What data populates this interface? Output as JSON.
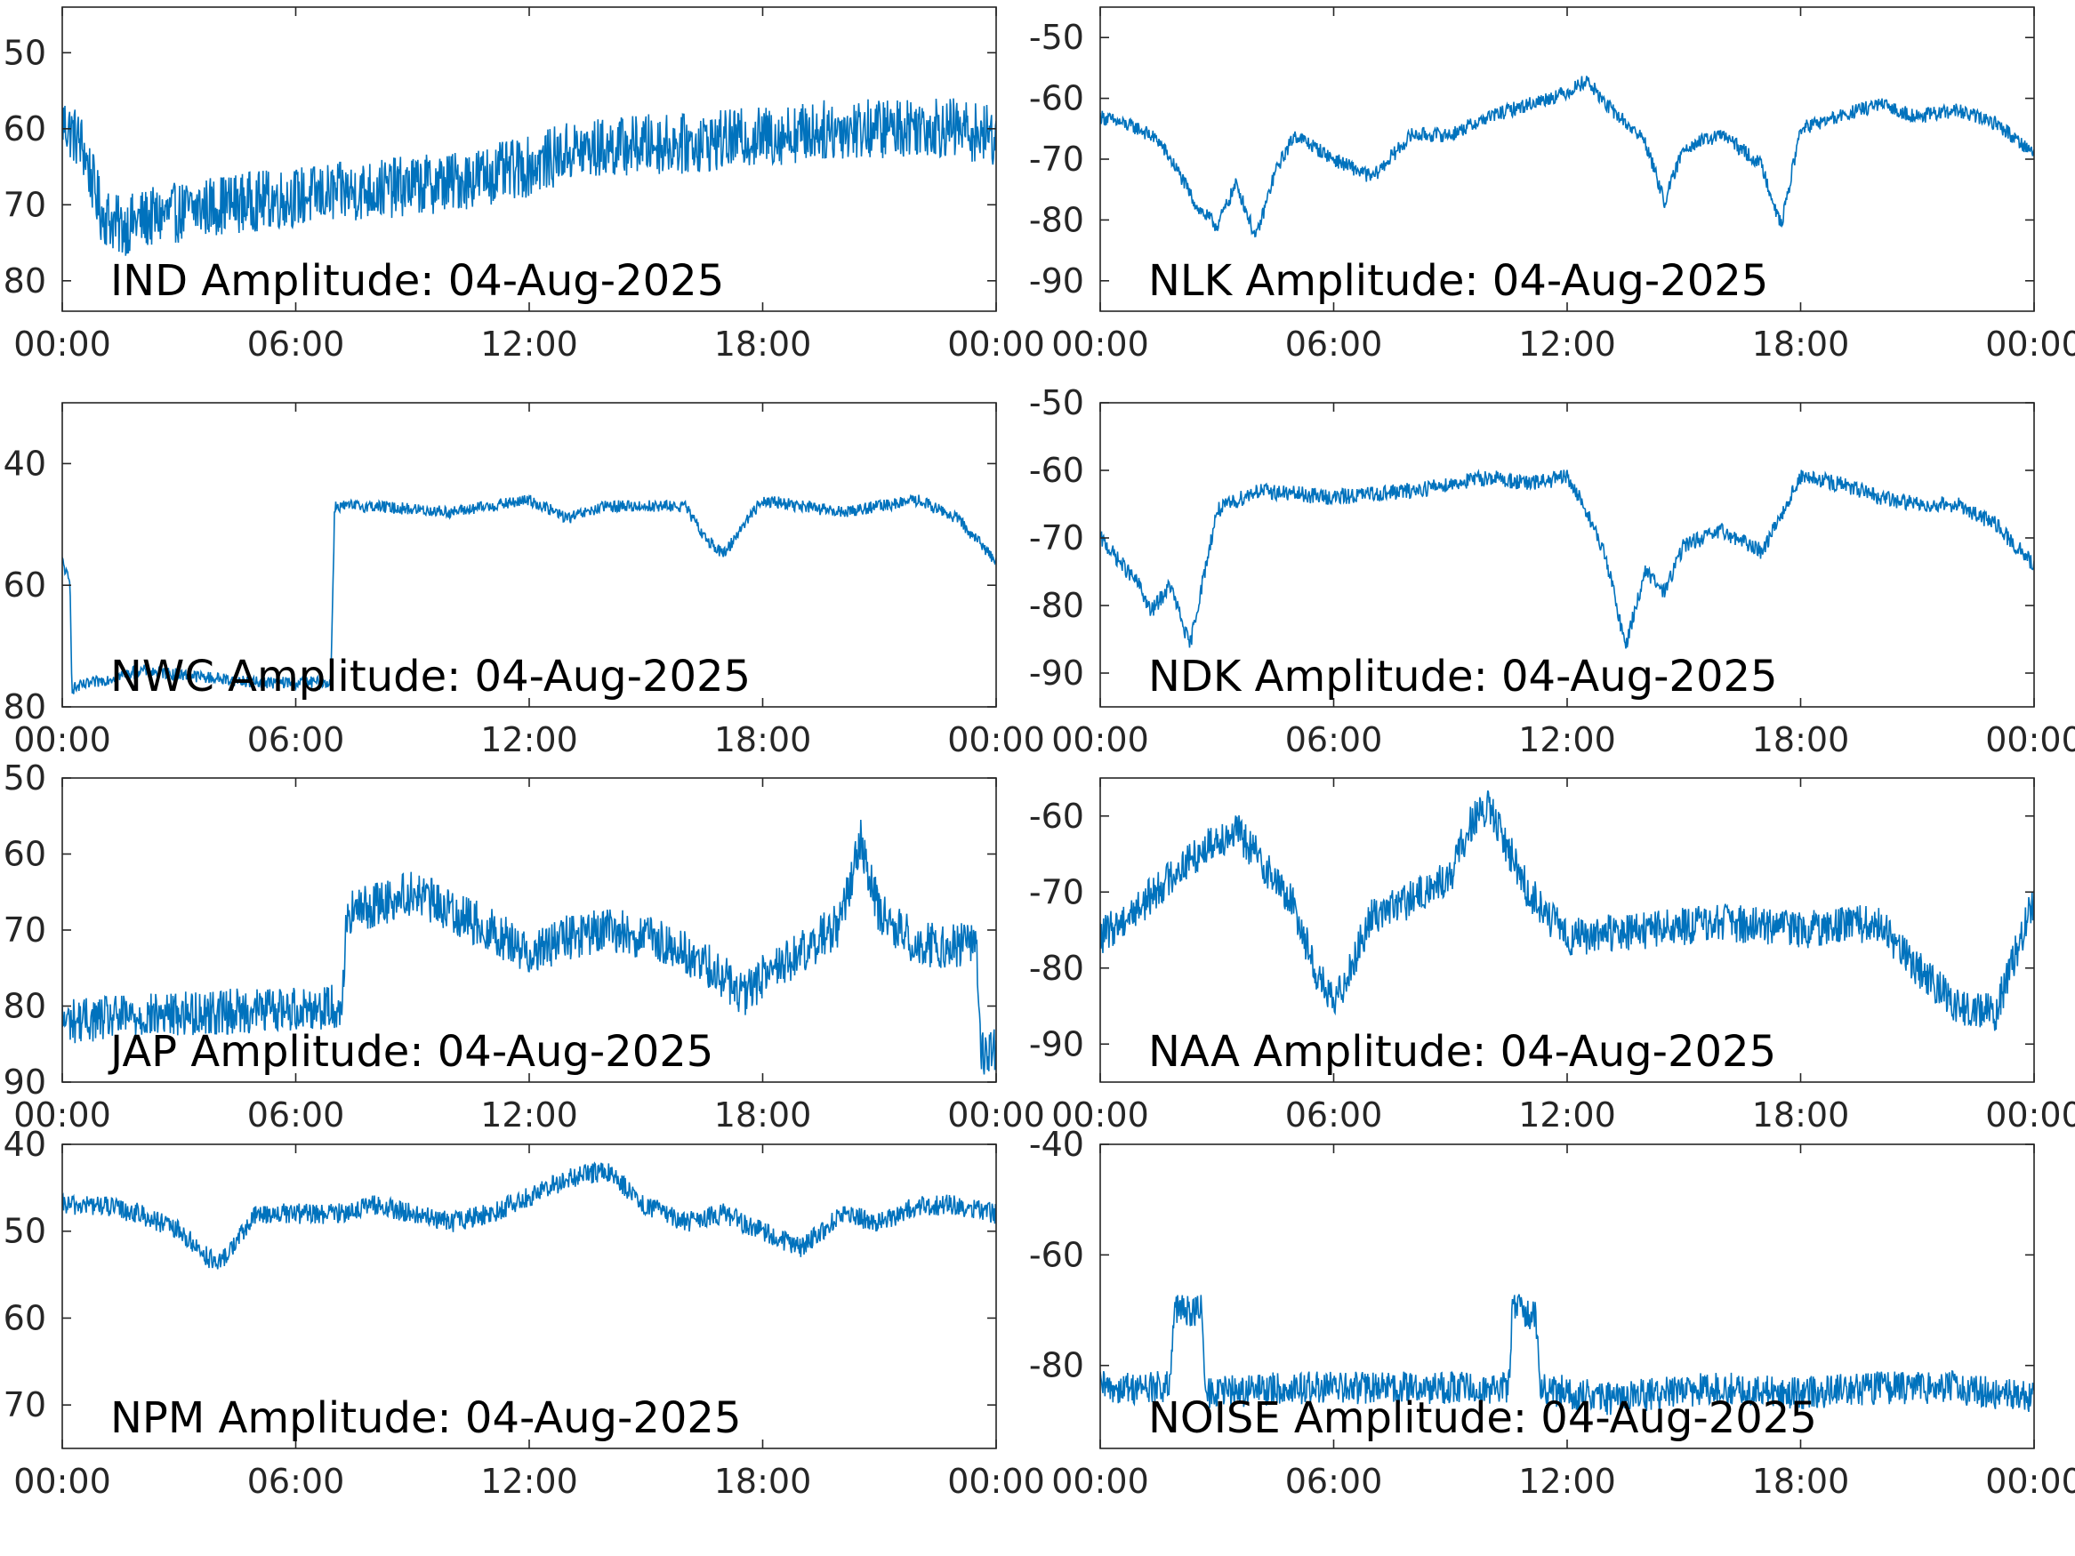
{
  "colors": {
    "line": "#0072BD",
    "axis": "#262626",
    "background": "#ffffff"
  },
  "x_tick_labels": [
    "00:00",
    "06:00",
    "12:00",
    "18:00",
    "00:00"
  ],
  "chart_data": [
    {
      "type": "line",
      "id": "IND",
      "title": "IND Amplitude: 04-Aug-2025",
      "x_range": [
        "00:00",
        "24:00"
      ],
      "ylim": [
        -84,
        -44
      ],
      "yticks": [
        -50,
        -60,
        -70,
        -80
      ],
      "ytick_labels": [
        "50",
        "60",
        "70",
        "80"
      ],
      "x_hours": [
        0,
        0.5,
        1,
        1.5,
        2,
        3,
        4,
        5,
        6,
        7,
        8,
        9,
        10,
        11,
        12,
        13,
        14,
        15,
        16,
        17,
        18,
        19,
        20,
        21,
        22,
        23,
        24
      ],
      "y": [
        -59,
        -62,
        -71,
        -73,
        -72,
        -71,
        -70,
        -69.5,
        -69,
        -68.5,
        -68,
        -67.5,
        -67,
        -66,
        -65,
        -63,
        -62.5,
        -62,
        -62,
        -61.5,
        -61,
        -60.5,
        -60,
        -60,
        -59.5,
        -60,
        -61
      ],
      "noise": 4
    },
    {
      "type": "line",
      "id": "NLK",
      "title": "NLK Amplitude: 04-Aug-2025",
      "x_range": [
        "00:00",
        "24:00"
      ],
      "ylim": [
        -95,
        -45
      ],
      "yticks": [
        -50,
        -60,
        -70,
        -80,
        -90
      ],
      "ytick_labels": [
        "-50",
        "-60",
        "-70",
        "-80",
        "-90"
      ],
      "x_hours": [
        0,
        1,
        1.5,
        2,
        2.5,
        3,
        3.5,
        4,
        4.5,
        5,
        6,
        7,
        8,
        9,
        10,
        11,
        12,
        12.5,
        13,
        14,
        14.5,
        15,
        16,
        17,
        17.5,
        18,
        19,
        20,
        21,
        22,
        23,
        24
      ],
      "y": [
        -63,
        -65,
        -67,
        -72,
        -78,
        -81,
        -74,
        -83,
        -72,
        -66,
        -70,
        -73,
        -66,
        -66,
        -63,
        -61,
        -59,
        -57,
        -61,
        -67,
        -77,
        -68,
        -66,
        -71,
        -81,
        -65,
        -63,
        -61,
        -63,
        -62,
        -64,
        -69
      ],
      "noise": 1.2
    },
    {
      "type": "line",
      "id": "NWC",
      "title": "NWC Amplitude: 04-Aug-2025",
      "x_range": [
        "00:00",
        "24:00"
      ],
      "ylim": [
        -80,
        -30
      ],
      "yticks": [
        -40,
        -60,
        -80
      ],
      "ytick_labels": [
        "40",
        "60",
        "80"
      ],
      "x_hours": [
        0,
        0.2,
        0.25,
        2,
        5,
        6.9,
        7,
        8,
        10,
        12,
        13,
        14,
        16,
        16.5,
        17,
        17.5,
        18,
        19,
        20,
        21,
        22,
        23,
        24
      ],
      "y": [
        -56,
        -60,
        -77,
        -74,
        -76,
        -76,
        -47,
        -47,
        -48,
        -46,
        -49,
        -47,
        -47,
        -52,
        -55,
        -50,
        -46,
        -47,
        -48,
        -47,
        -46,
        -49,
        -56
      ],
      "noise": 1
    },
    {
      "type": "line",
      "id": "NDK",
      "title": "NDK Amplitude: 04-Aug-2025",
      "x_range": [
        "00:00",
        "24:00"
      ],
      "ylim": [
        -95,
        -50
      ],
      "yticks": [
        -50,
        -60,
        -70,
        -80,
        -90
      ],
      "ytick_labels": [
        "-50",
        "-60",
        "-70",
        "-80",
        "-90"
      ],
      "x_hours": [
        0,
        1,
        1.3,
        1.8,
        2.3,
        3,
        4,
        6,
        8,
        10,
        11,
        12,
        12.5,
        13,
        13.5,
        14,
        14.5,
        15,
        16,
        17,
        18,
        19,
        20,
        21,
        22,
        23,
        24
      ],
      "y": [
        -70,
        -77,
        -81,
        -77,
        -86,
        -66,
        -63,
        -64,
        -63,
        -61,
        -62,
        -61,
        -66,
        -73,
        -86,
        -75,
        -78,
        -71,
        -69,
        -72,
        -61,
        -62,
        -64,
        -65,
        -65,
        -68,
        -74
      ],
      "noise": 1.2
    },
    {
      "type": "line",
      "id": "JAP",
      "title": "JAP Amplitude: 04-Aug-2025",
      "x_range": [
        "00:00",
        "24:00"
      ],
      "ylim": [
        -90,
        -50
      ],
      "yticks": [
        -50,
        -60,
        -70,
        -80,
        -90
      ],
      "ytick_labels": [
        "50",
        "60",
        "70",
        "80",
        "90"
      ],
      "x_hours": [
        0,
        3,
        7.2,
        7.3,
        9,
        11,
        12,
        13,
        14,
        15,
        16,
        17,
        17.5,
        18,
        19,
        20,
        20.5,
        21,
        22,
        23.5,
        23.6,
        24
      ],
      "y": [
        -82,
        -81,
        -80,
        -68,
        -65,
        -70,
        -73,
        -71,
        -70,
        -71,
        -73,
        -76,
        -79,
        -76,
        -73,
        -69,
        -58,
        -68,
        -72,
        -72,
        -86,
        -86
      ],
      "noise": 3
    },
    {
      "type": "line",
      "id": "NAA",
      "title": "NAA Amplitude: 04-Aug-2025",
      "x_range": [
        "00:00",
        "24:00"
      ],
      "ylim": [
        -95,
        -55
      ],
      "yticks": [
        -60,
        -70,
        -80,
        -90
      ],
      "ytick_labels": [
        "-60",
        "-70",
        "-80",
        "-90"
      ],
      "x_hours": [
        0,
        1,
        2,
        3,
        3.5,
        4,
        5,
        5.5,
        6,
        7,
        8,
        9,
        9.5,
        10,
        11,
        12,
        14,
        16,
        18,
        20,
        21,
        22,
        23,
        24
      ],
      "y": [
        -76,
        -72,
        -67,
        -63,
        -62,
        -65,
        -72,
        -80,
        -85,
        -73,
        -71,
        -68,
        -61,
        -59,
        -70,
        -76,
        -75,
        -74,
        -75,
        -74,
        -80,
        -85,
        -86,
        -71
      ],
      "noise": 2.5
    },
    {
      "type": "line",
      "id": "NPM",
      "title": "NPM Amplitude: 04-Aug-2025",
      "x_range": [
        "00:00",
        "24:00"
      ],
      "ylim": [
        -75,
        -40
      ],
      "yticks": [
        -40,
        -50,
        -60,
        -70
      ],
      "ytick_labels": [
        "40",
        "50",
        "60",
        "70"
      ],
      "x_hours": [
        0,
        1,
        2,
        3,
        4,
        4.5,
        5,
        6,
        7,
        8,
        9,
        10,
        11,
        12,
        13,
        14,
        15,
        16,
        17,
        18,
        19,
        20,
        21,
        22,
        23,
        24
      ],
      "y": [
        -47,
        -47,
        -48,
        -50,
        -54,
        -51,
        -48,
        -48,
        -48,
        -47,
        -48,
        -49,
        -48,
        -46,
        -44,
        -43,
        -47,
        -49,
        -48,
        -50,
        -52,
        -48,
        -49,
        -47,
        -47,
        -48
      ],
      "noise": 1.2
    },
    {
      "type": "line",
      "id": "NOISE",
      "title": "NOISE Amplitude: 04-Aug-2025",
      "x_range": [
        "00:00",
        "24:00"
      ],
      "ylim": [
        -95,
        -40
      ],
      "yticks": [
        -40,
        -60,
        -80
      ],
      "ytick_labels": [
        "-40",
        "-60",
        "-80"
      ],
      "x_hours": [
        0,
        1.8,
        1.9,
        2.6,
        2.7,
        5,
        8,
        10.5,
        10.6,
        11.2,
        11.3,
        13,
        16,
        18,
        20,
        22,
        24
      ],
      "y": [
        -84,
        -84,
        -70,
        -70,
        -85,
        -84,
        -84,
        -84,
        -69,
        -71,
        -84,
        -86,
        -84,
        -85,
        -84,
        -84,
        -86
      ],
      "noise": 3
    }
  ]
}
